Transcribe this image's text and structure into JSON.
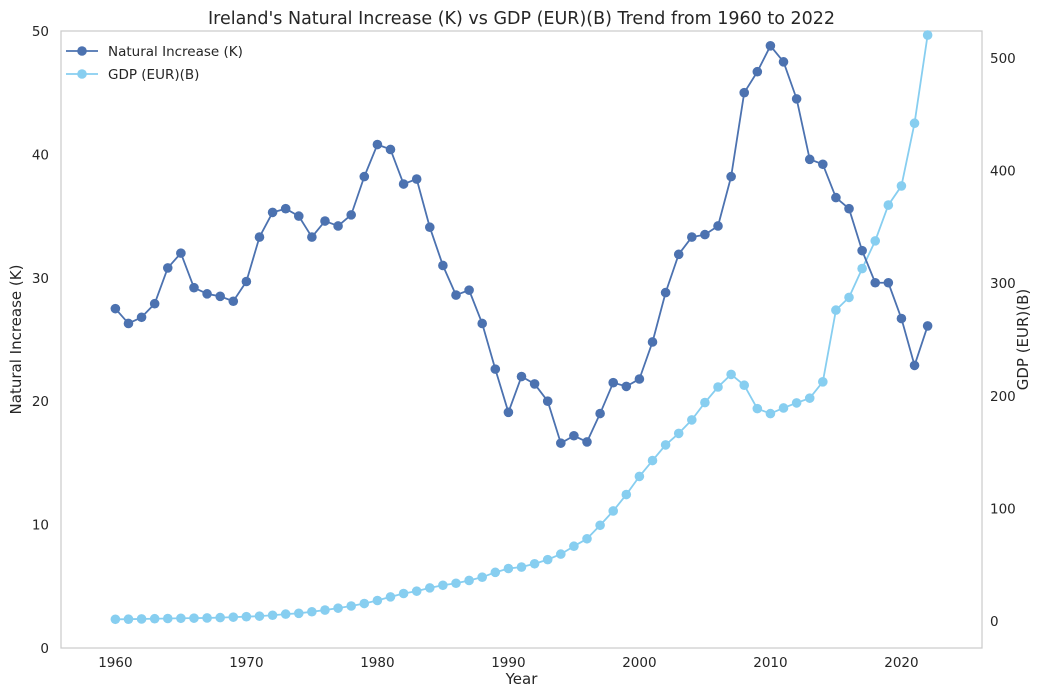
{
  "chart_data": {
    "type": "line",
    "title": "Ireland's Natural Increase (K) vs GDP (EUR)(B) Trend from 1960 to 2022",
    "xlabel": "Year",
    "ylabel_left": "Natural Increase (K)",
    "ylabel_right": "GDP (EUR)(B)",
    "xlim": [
      1955.85,
      2026.15
    ],
    "ylim_left": [
      0,
      50
    ],
    "ylim_right": [
      -24,
      524
    ],
    "x_ticks": [
      1960,
      1970,
      1980,
      1990,
      2000,
      2010,
      2020
    ],
    "y_ticks_left": [
      0,
      10,
      20,
      30,
      40,
      50
    ],
    "y_ticks_right": [
      0,
      100,
      200,
      300,
      400,
      500
    ],
    "grid": false,
    "legend_position": "top-left",
    "x": [
      1960,
      1961,
      1962,
      1963,
      1964,
      1965,
      1966,
      1967,
      1968,
      1969,
      1970,
      1971,
      1972,
      1973,
      1974,
      1975,
      1976,
      1977,
      1978,
      1979,
      1980,
      1981,
      1982,
      1983,
      1984,
      1985,
      1986,
      1987,
      1988,
      1989,
      1990,
      1991,
      1992,
      1993,
      1994,
      1995,
      1996,
      1997,
      1998,
      1999,
      2000,
      2001,
      2002,
      2003,
      2004,
      2005,
      2006,
      2007,
      2008,
      2009,
      2010,
      2011,
      2012,
      2013,
      2014,
      2015,
      2016,
      2017,
      2018,
      2019,
      2020,
      2021,
      2022
    ],
    "series": [
      {
        "name": "Natural Increase (K)",
        "axis": "left",
        "color": "#4c72b0",
        "values": [
          27.5,
          26.3,
          26.8,
          27.9,
          30.8,
          32.0,
          29.2,
          28.7,
          28.5,
          28.1,
          29.7,
          33.3,
          35.3,
          35.6,
          35.0,
          33.3,
          34.6,
          34.2,
          35.1,
          38.2,
          40.8,
          40.4,
          37.6,
          38.0,
          34.1,
          31.0,
          28.6,
          29.0,
          26.3,
          22.6,
          19.1,
          22.0,
          21.4,
          20.0,
          16.6,
          17.2,
          16.7,
          19.0,
          21.5,
          21.2,
          21.8,
          24.8,
          28.8,
          31.9,
          33.3,
          33.5,
          34.2,
          38.2,
          45.0,
          46.7,
          48.8,
          47.5,
          44.5,
          39.6,
          39.2,
          36.5,
          35.6,
          32.2,
          29.6,
          29.6,
          26.7,
          22.9,
          26.1
        ]
      },
      {
        "name": "GDP (EUR)(B)",
        "axis": "right",
        "color": "#87cef0",
        "values": [
          1.5,
          1.6,
          1.8,
          2.0,
          2.2,
          2.4,
          2.5,
          2.7,
          3.0,
          3.4,
          3.8,
          4.3,
          5.1,
          6.1,
          6.8,
          8.2,
          9.7,
          11.4,
          13.3,
          15.5,
          18.2,
          21.4,
          24.4,
          26.5,
          29.4,
          31.7,
          33.5,
          36.0,
          38.9,
          43.2,
          46.6,
          47.9,
          50.8,
          54.5,
          59.4,
          66.4,
          73.0,
          85.0,
          97.7,
          112.3,
          128.4,
          142.5,
          156.4,
          166.6,
          178.6,
          194.0,
          207.8,
          219.0,
          209.4,
          188.6,
          184.2,
          189.2,
          193.7,
          197.9,
          212.4,
          276.1,
          287.4,
          313.0,
          337.6,
          369.4,
          386.4,
          442.1,
          520.4
        ]
      }
    ]
  }
}
